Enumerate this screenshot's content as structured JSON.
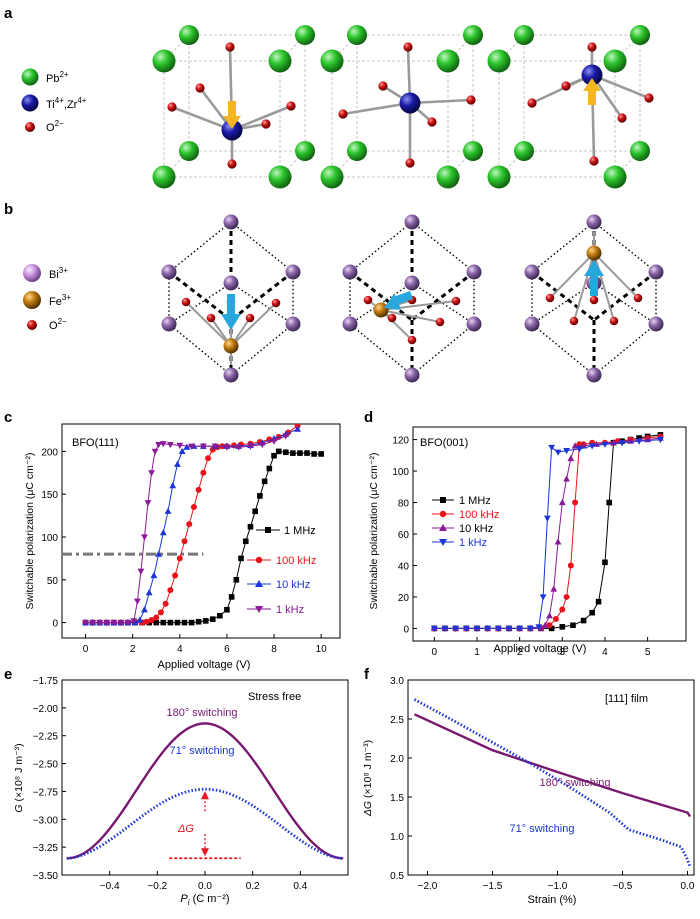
{
  "panel_labels": {
    "a": "a",
    "b": "b",
    "c": "c",
    "d": "d",
    "e": "e",
    "f": "f"
  },
  "legend_a": {
    "pb": "Pb",
    "pb_sup": "2+",
    "ti": "Ti",
    "ti_sup": "4+",
    "ti_sep": ",Zr",
    "zr_sup": "4+",
    "o": "O",
    "o_sup": "2−"
  },
  "legend_b": {
    "bi": "Bi",
    "bi_sup": "3+",
    "fe": "Fe",
    "fe_sup": "3+",
    "o": "O",
    "o_sup": "2−"
  },
  "colors": {
    "pb": "#2bc42b",
    "ti": "#1a1aa8",
    "oxygen": "#cc1111",
    "bi": "#8a64a8",
    "fe": "#c07a10",
    "arrow_a": "#f5b521",
    "arrow_b": "#28a7dc",
    "black": "#000000",
    "red": "#e8141a",
    "blue": "#1a36d8",
    "purple": "#8a1a98",
    "dark_purple": "#78186e",
    "dashdot": "#777777"
  },
  "chart_data": [
    {
      "id": "c",
      "type": "line",
      "annotation": "BFO(111)",
      "xlabel": "Applied voltage (V)",
      "ylabel": "Switchable polarization (μC cm⁻²)",
      "xlim": [
        -1,
        10.8
      ],
      "ylim": [
        -18,
        232
      ],
      "xticks": [
        0,
        2,
        4,
        6,
        8,
        10
      ],
      "yticks": [
        0,
        50,
        100,
        150,
        200
      ],
      "hline": {
        "y": 80,
        "x": [
          -1,
          5
        ]
      },
      "series": [
        {
          "name": "1 MHz",
          "color": "#000000",
          "marker": "square",
          "x": [
            0,
            0.3,
            0.6,
            0.9,
            1.2,
            1.5,
            1.8,
            2.1,
            2.4,
            2.7,
            3,
            3.3,
            3.6,
            3.9,
            4.2,
            4.5,
            4.8,
            5.1,
            5.4,
            5.7,
            6,
            6.2,
            6.4,
            6.6,
            6.8,
            7,
            7.2,
            7.4,
            7.6,
            7.8,
            8,
            8.2,
            8.5,
            8.8,
            9.1,
            9.4,
            9.7,
            10
          ],
          "y": [
            0,
            0,
            0,
            0,
            0,
            0,
            0,
            0,
            0,
            0,
            0,
            0,
            0,
            0,
            0,
            0,
            1,
            2,
            4,
            8,
            15,
            30,
            50,
            75,
            95,
            112,
            130,
            148,
            165,
            180,
            195,
            200,
            199,
            198,
            198,
            198,
            197,
            197
          ]
        },
        {
          "name": "100 kHz",
          "color": "#e8141a",
          "marker": "circle",
          "x": [
            0,
            0.3,
            0.6,
            0.9,
            1.2,
            1.5,
            1.8,
            2.1,
            2.4,
            2.6,
            2.8,
            3,
            3.2,
            3.4,
            3.6,
            3.8,
            4,
            4.2,
            4.4,
            4.6,
            4.8,
            5,
            5.2,
            5.4,
            5.6,
            5.8,
            6,
            6.3,
            6.6,
            7,
            7.4,
            7.8,
            8.2,
            8.6,
            9
          ],
          "y": [
            0,
            0,
            0,
            0,
            0,
            0,
            0,
            0,
            0,
            1,
            3,
            6,
            12,
            22,
            38,
            55,
            75,
            95,
            115,
            135,
            155,
            175,
            192,
            202,
            205,
            206,
            206,
            207,
            208,
            209,
            211,
            214,
            217,
            222,
            230
          ]
        },
        {
          "name": "10 kHz",
          "color": "#1a36d8",
          "marker": "triangle-up",
          "x": [
            0,
            0.3,
            0.6,
            0.9,
            1.2,
            1.5,
            1.8,
            2.1,
            2.3,
            2.5,
            2.7,
            2.9,
            3.1,
            3.3,
            3.5,
            3.7,
            3.9,
            4.1,
            4.3,
            4.6,
            5,
            5.5,
            6,
            6.5,
            7,
            7.5,
            8,
            8.5,
            9
          ],
          "y": [
            0,
            0,
            0,
            0,
            0,
            0,
            0,
            0,
            3,
            15,
            35,
            55,
            80,
            105,
            130,
            160,
            185,
            200,
            205,
            206,
            206,
            206,
            206,
            206,
            207,
            210,
            215,
            220,
            226
          ]
        },
        {
          "name": "1 kHz",
          "color": "#8a1a98",
          "marker": "triangle-down",
          "x": [
            0,
            0.3,
            0.6,
            0.9,
            1.2,
            1.5,
            1.8,
            2.05,
            2.2,
            2.35,
            2.5,
            2.65,
            2.8,
            2.95,
            3.1,
            3.3,
            3.6,
            4,
            4.5,
            5,
            5.5,
            6,
            6.5,
            7,
            7.5,
            8,
            8.5
          ],
          "y": [
            0,
            0,
            0,
            0,
            0,
            0,
            0,
            2,
            25,
            60,
            100,
            140,
            175,
            200,
            208,
            209,
            208,
            207,
            206,
            206,
            206,
            205,
            205,
            206,
            208,
            212,
            218
          ]
        }
      ]
    },
    {
      "id": "d",
      "type": "line",
      "annotation": "BFO(001)",
      "xlabel": "Applied voltage (V)",
      "ylabel": "Switchable polarization (μC cm⁻²)",
      "xlim": [
        -0.5,
        5.9
      ],
      "ylim": [
        -8,
        128
      ],
      "xticks": [
        0,
        1,
        2,
        3,
        4,
        5
      ],
      "yticks": [
        0,
        20,
        40,
        60,
        80,
        100,
        120
      ],
      "series": [
        {
          "name": "1 MHz",
          "color": "#000000",
          "marker": "square",
          "x": [
            0,
            0.25,
            0.5,
            0.75,
            1,
            1.25,
            1.5,
            1.75,
            2,
            2.25,
            2.5,
            2.75,
            3,
            3.25,
            3.5,
            3.7,
            3.85,
            4,
            4.1,
            4.2,
            4.4,
            4.6,
            4.8,
            5,
            5.3
          ],
          "y": [
            0,
            0,
            0,
            0,
            0,
            0,
            0,
            0,
            0,
            0,
            0,
            0,
            1,
            2,
            5,
            10,
            17,
            42,
            80,
            118,
            119,
            120,
            121,
            122,
            123
          ]
        },
        {
          "name": "100 kHz",
          "color": "#e8141a",
          "marker": "circle",
          "x": [
            0,
            0.25,
            0.5,
            0.75,
            1,
            1.25,
            1.5,
            1.75,
            2,
            2.25,
            2.5,
            2.7,
            2.85,
            3,
            3.1,
            3.2,
            3.3,
            3.4,
            3.5,
            3.7,
            4,
            4.3,
            4.6,
            5,
            5.3
          ],
          "y": [
            0,
            0,
            0,
            0,
            0,
            0,
            0,
            0,
            0,
            0,
            0,
            2,
            6,
            12,
            20,
            40,
            80,
            117,
            117,
            118,
            118,
            119,
            120,
            121,
            122
          ]
        },
        {
          "name": "10 kHz",
          "color": "#8a1a98",
          "marker": "triangle-up",
          "x": [
            0,
            0.25,
            0.5,
            0.75,
            1,
            1.25,
            1.5,
            1.75,
            2,
            2.25,
            2.5,
            2.6,
            2.7,
            2.8,
            2.9,
            3,
            3.1,
            3.2,
            3.3,
            3.5,
            3.8,
            4.2,
            4.6,
            5,
            5.3
          ],
          "y": [
            0,
            0,
            0,
            0,
            0,
            0,
            0,
            0,
            0,
            0,
            0,
            2,
            8,
            25,
            55,
            80,
            95,
            108,
            116,
            116,
            117,
            118,
            119,
            120,
            121
          ]
        },
        {
          "name": "1 kHz",
          "color": "#1a36d8",
          "marker": "triangle-down",
          "x": [
            0,
            0.25,
            0.5,
            0.75,
            1,
            1.25,
            1.5,
            1.75,
            2,
            2.25,
            2.45,
            2.55,
            2.65,
            2.75,
            2.9,
            3.1,
            3.4,
            3.7,
            4,
            4.4,
            4.8,
            5.3
          ],
          "y": [
            0,
            0,
            0,
            0,
            0,
            0,
            0,
            0,
            0,
            0,
            1,
            20,
            70,
            115,
            112,
            113,
            114,
            116,
            117,
            118,
            119,
            120
          ]
        }
      ]
    },
    {
      "id": "e",
      "type": "line",
      "annotation": "Stress free",
      "xlabel_main": "P",
      "xlabel_sub": "i",
      "xlabel_units": " (C m⁻²)",
      "ylabel_main": "G",
      "ylabel_units": " (×10⁸ J m⁻³)",
      "xlim": [
        -0.6,
        0.6
      ],
      "ylim": [
        -3.5,
        -1.75
      ],
      "xticks": [
        -0.4,
        -0.2,
        0,
        0.2,
        0.4
      ],
      "xtick_labels": [
        "−0.4",
        "−0.2",
        "0.0",
        "0.2",
        "0.4"
      ],
      "yticks": [
        -1.75,
        -2,
        -2.25,
        -2.5,
        -2.75,
        -3,
        -3.25,
        -3.5
      ],
      "ytick_labels": [
        "−1.75",
        "−2.00",
        "−2.25",
        "−2.50",
        "−2.75",
        "−3.00",
        "−3.25",
        "−3.50"
      ],
      "series": [
        {
          "name": "180° switching",
          "color": "#78186e",
          "style": "solid",
          "peak": -2.14,
          "base": -3.35,
          "xmax": 0.58,
          "exponent": 1.7
        },
        {
          "name": "71° switching",
          "color": "#1a36d8",
          "style": "dotted",
          "peak": -2.73,
          "base": -3.35,
          "xmax": 0.58,
          "exponent": 1.5
        }
      ],
      "delta": {
        "label": "ΔG",
        "x": 0,
        "top": -2.73,
        "bottom": -3.35,
        "baseline_x": [
          -0.15,
          0.15
        ]
      }
    },
    {
      "id": "f",
      "type": "line",
      "annotation": "[111] film",
      "xlabel": "Strain (%)",
      "ylabel_main": "ΔG",
      "ylabel_units": " (×10⁸ J m⁻³)",
      "xlim": [
        -2.15,
        0.05
      ],
      "ylim": [
        0.5,
        3.0
      ],
      "xticks": [
        -2,
        -1.5,
        -1,
        -0.5,
        0
      ],
      "xtick_labels": [
        "−2.0",
        "−1.5",
        "−1.0",
        "−0.5",
        "0.0"
      ],
      "yticks": [
        0.5,
        1,
        1.5,
        2,
        2.5,
        3
      ],
      "ytick_labels": [
        "0.5",
        "1.0",
        "1.5",
        "2.0",
        "2.5",
        "3.0"
      ],
      "series": [
        {
          "name": "180° switching",
          "color": "#78186e",
          "style": "solid",
          "x": [
            -2.1,
            -1.5,
            -1.0,
            -0.5,
            0.0,
            0.02
          ],
          "y": [
            2.56,
            2.1,
            1.82,
            1.55,
            1.3,
            1.25
          ]
        },
        {
          "name": "71° switching",
          "color": "#1a36d8",
          "style": "dotted",
          "x": [
            -2.1,
            -1.8,
            -1.5,
            -1.2,
            -0.9,
            -0.6,
            -0.45,
            -0.2,
            -0.05,
            0.0,
            0.02
          ],
          "y": [
            2.75,
            2.48,
            2.2,
            1.92,
            1.62,
            1.3,
            1.08,
            0.95,
            0.86,
            0.7,
            0.6
          ]
        }
      ]
    }
  ]
}
